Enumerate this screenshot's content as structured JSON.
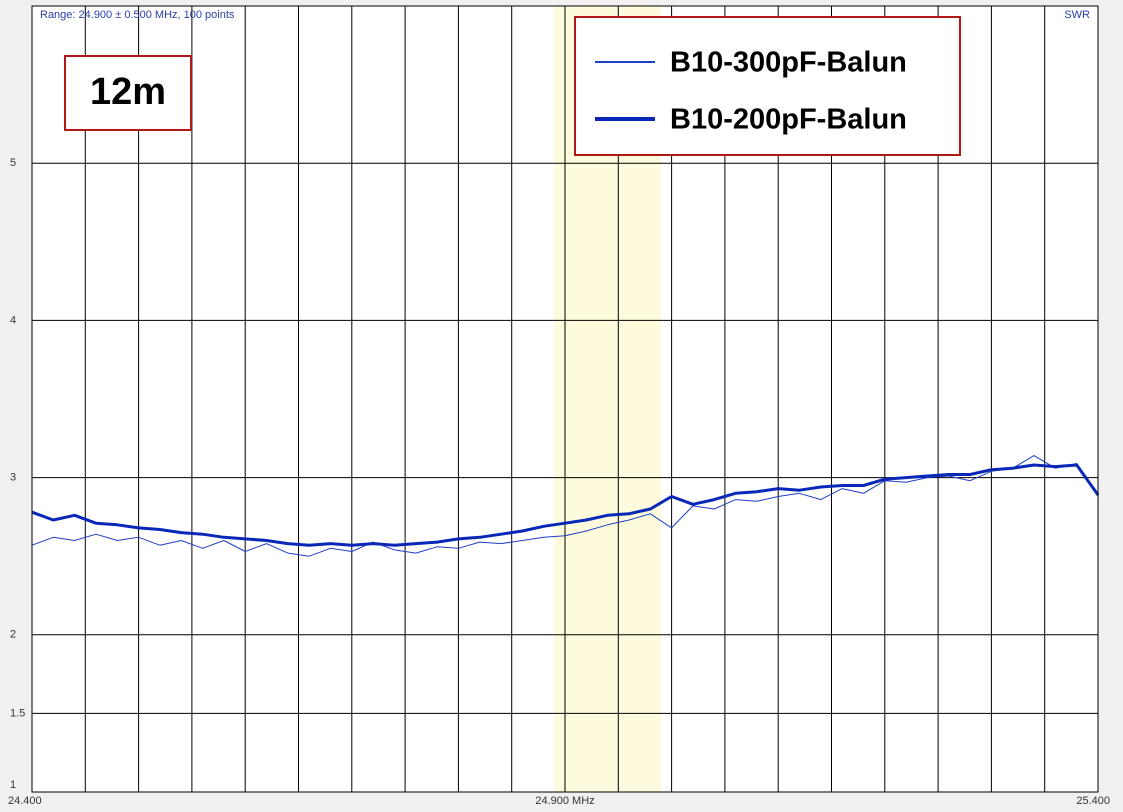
{
  "chart_data": {
    "type": "line",
    "subtitle": "Range: 24.900 ± 0.500 MHz, 100 points",
    "y_label": "SWR",
    "annotation": "12m",
    "highlight": [
      24.89,
      24.99
    ],
    "highlight_color": "#fdfbdc",
    "xlim": [
      24.4,
      25.4
    ],
    "ylim": [
      1,
      6
    ],
    "xticks": [
      {
        "value": 24.4,
        "label": "24.400"
      },
      {
        "value": 24.9,
        "label": "24.900 MHz"
      },
      {
        "value": 25.4,
        "label": "25.400"
      }
    ],
    "xgrid": [
      24.4,
      24.45,
      24.5,
      24.55,
      24.6,
      24.65,
      24.7,
      24.75,
      24.8,
      24.85,
      24.9,
      24.95,
      25.0,
      25.05,
      25.1,
      25.15,
      25.2,
      25.25,
      25.3,
      25.35,
      25.4
    ],
    "yticks": [
      1,
      1.5,
      2,
      3,
      4,
      5
    ],
    "grid": true,
    "legend": "top-right",
    "x": [
      24.4,
      24.42,
      24.44,
      24.46,
      24.48,
      24.5,
      24.52,
      24.54,
      24.56,
      24.58,
      24.6,
      24.62,
      24.64,
      24.66,
      24.68,
      24.7,
      24.72,
      24.74,
      24.76,
      24.78,
      24.8,
      24.82,
      24.84,
      24.86,
      24.88,
      24.9,
      24.92,
      24.94,
      24.96,
      24.98,
      25.0,
      25.02,
      25.04,
      25.06,
      25.08,
      25.1,
      25.12,
      25.14,
      25.16,
      25.18,
      25.2,
      25.22,
      25.24,
      25.26,
      25.28,
      25.3,
      25.32,
      25.34,
      25.36,
      25.38,
      25.4
    ],
    "series": [
      {
        "name": "B10-300pF-Balun",
        "color": "#1f3fc8",
        "width": 1,
        "values": [
          2.57,
          2.62,
          2.6,
          2.64,
          2.6,
          2.62,
          2.57,
          2.6,
          2.55,
          2.6,
          2.53,
          2.58,
          2.52,
          2.5,
          2.55,
          2.53,
          2.59,
          2.54,
          2.52,
          2.56,
          2.55,
          2.59,
          2.58,
          2.6,
          2.62,
          2.63,
          2.66,
          2.7,
          2.73,
          2.77,
          2.68,
          2.82,
          2.8,
          2.86,
          2.85,
          2.88,
          2.9,
          2.86,
          2.93,
          2.9,
          2.98,
          2.97,
          3.0,
          3.01,
          2.98,
          3.04,
          3.06,
          3.14,
          3.06,
          3.09,
          2.88
        ]
      },
      {
        "name": "B10-200pF-Balun",
        "color": "#0a28b8",
        "width": 3,
        "values": [
          2.78,
          2.73,
          2.76,
          2.71,
          2.7,
          2.68,
          2.67,
          2.65,
          2.64,
          2.62,
          2.61,
          2.6,
          2.58,
          2.57,
          2.58,
          2.57,
          2.58,
          2.57,
          2.58,
          2.59,
          2.61,
          2.62,
          2.64,
          2.66,
          2.69,
          2.71,
          2.73,
          2.76,
          2.77,
          2.8,
          2.88,
          2.83,
          2.86,
          2.9,
          2.91,
          2.93,
          2.92,
          2.94,
          2.95,
          2.95,
          2.99,
          3.0,
          3.01,
          3.02,
          3.02,
          3.05,
          3.06,
          3.08,
          3.07,
          3.08,
          2.89
        ]
      }
    ]
  }
}
